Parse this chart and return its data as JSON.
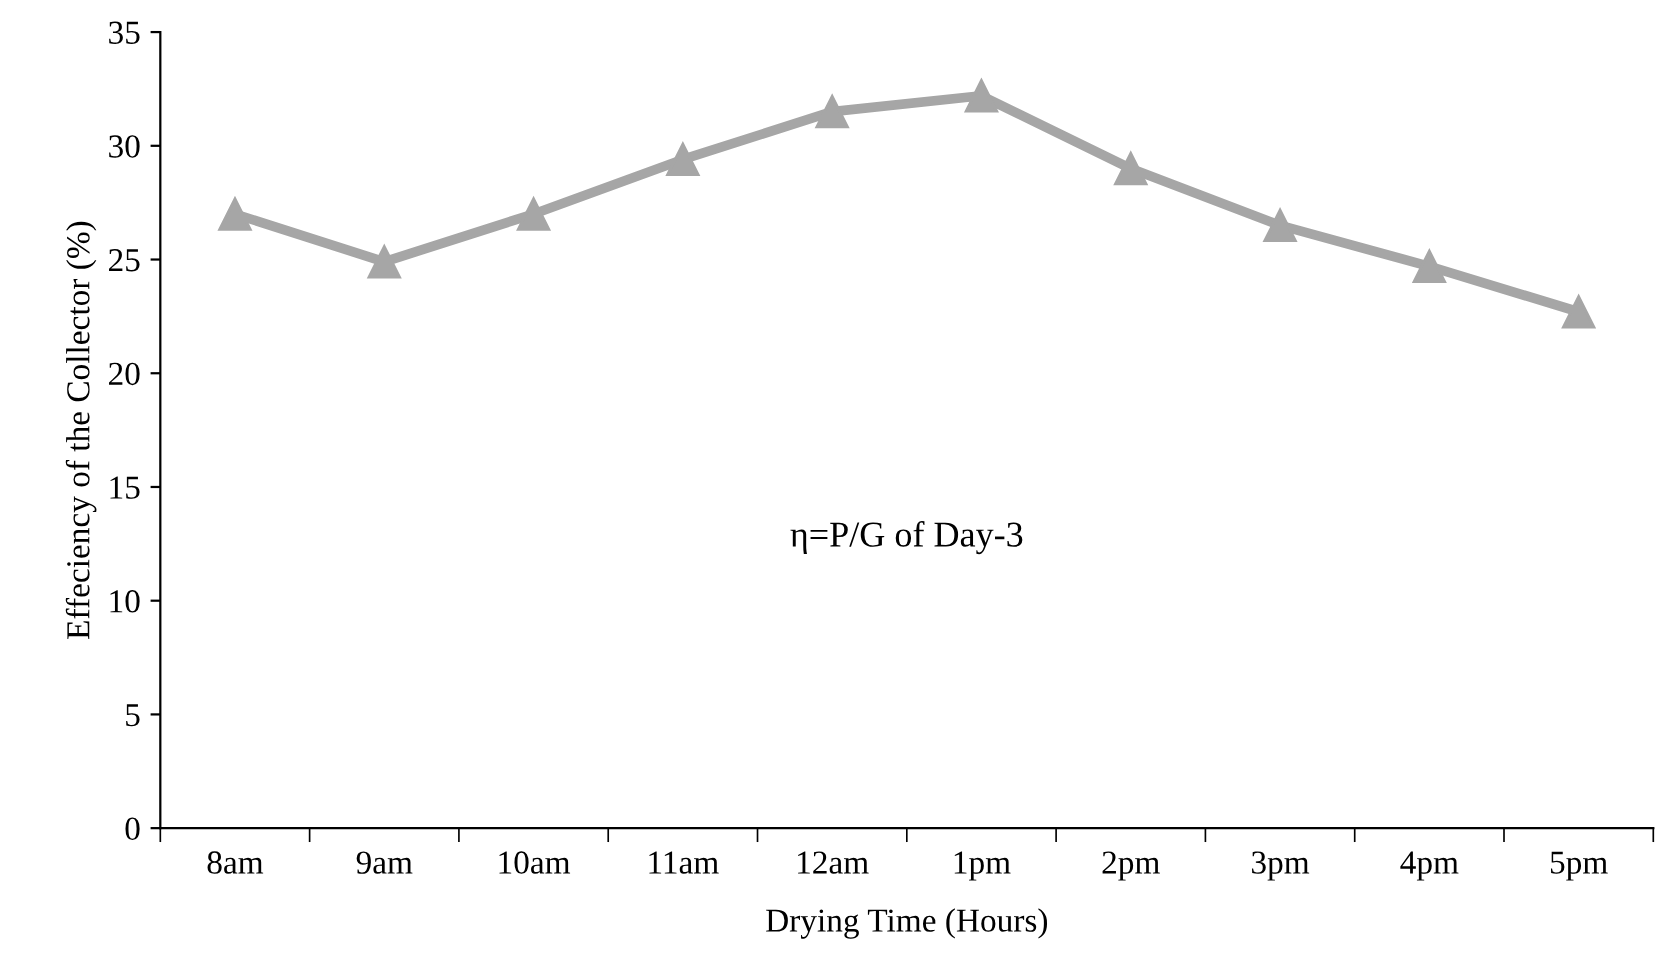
{
  "chart_data": {
    "type": "line",
    "xlabel": "Drying Time (Hours)",
    "ylabel": "Effeciency of the Collector (%)",
    "categories": [
      "8am",
      "9am",
      "10am",
      "11am",
      "12am",
      "1pm",
      "2pm",
      "3pm",
      "4pm",
      "5pm"
    ],
    "series": [
      {
        "color": "#a6a6a6",
        "values": [
          27.0,
          24.9,
          27.0,
          29.4,
          31.5,
          32.2,
          29.0,
          26.5,
          24.7,
          22.7
        ]
      }
    ],
    "ylim": [
      0,
      35
    ],
    "yticks": [
      0,
      5,
      10,
      15,
      20,
      25,
      30,
      35
    ],
    "marker": "triangle",
    "line_style": "solid",
    "grid": false,
    "legend": false,
    "annotations": [
      "η=P/G of Day-3"
    ]
  }
}
